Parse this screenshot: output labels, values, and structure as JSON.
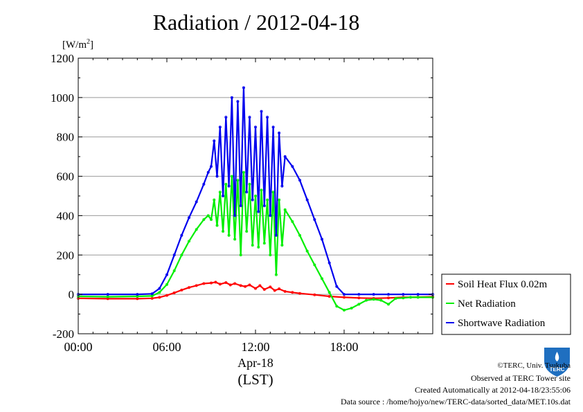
{
  "chart_data": {
    "type": "line",
    "title": "Radiation / 2012-04-18",
    "ylabel": "W/m",
    "ylabel_sup": "2",
    "ylim": [
      -200,
      1200
    ],
    "yticks": [
      -200,
      0,
      200,
      400,
      600,
      800,
      1000,
      1200
    ],
    "ytick_labels": [
      "-200",
      "0",
      "200",
      "400",
      "600",
      "800",
      "1000",
      "1200"
    ],
    "xlim": [
      0,
      24
    ],
    "xticks": [
      0,
      6,
      12,
      18
    ],
    "xtick_labels": [
      "00:00",
      "06:00",
      "12:00",
      "18:00"
    ],
    "xlabel_date": "Apr-18",
    "xlabel": "(LST)",
    "grid": "horizontal",
    "legend_position": "bottom-right",
    "series": [
      {
        "name": "Soil Heat Flux 0.02m",
        "color": "#ff0000",
        "x": [
          0,
          2,
          4,
          5,
          5.5,
          6,
          6.5,
          7,
          7.5,
          8,
          8.5,
          9,
          9.3,
          9.6,
          10,
          10.3,
          10.6,
          11,
          11.3,
          11.6,
          12,
          12.3,
          12.6,
          13,
          13.3,
          13.6,
          14,
          14.5,
          15,
          16,
          17,
          18,
          19,
          20,
          21,
          22,
          23,
          24
        ],
        "y": [
          -20,
          -22,
          -22,
          -20,
          -15,
          -5,
          8,
          22,
          35,
          45,
          55,
          58,
          62,
          52,
          60,
          48,
          55,
          45,
          40,
          48,
          30,
          45,
          25,
          38,
          20,
          28,
          15,
          10,
          5,
          -2,
          -10,
          -15,
          -18,
          -20,
          -18,
          -15,
          -14,
          -12
        ]
      },
      {
        "name": "Net Radiation",
        "color": "#00ee00",
        "x": [
          0,
          2,
          4,
          5,
          5.5,
          6,
          6.5,
          7,
          7.5,
          8,
          8.5,
          8.8,
          9,
          9.2,
          9.4,
          9.6,
          9.8,
          10,
          10.2,
          10.4,
          10.6,
          10.8,
          11,
          11.2,
          11.4,
          11.6,
          11.8,
          12,
          12.2,
          12.4,
          12.6,
          12.8,
          13,
          13.2,
          13.4,
          13.6,
          13.8,
          14,
          14.5,
          15,
          15.5,
          16,
          16.5,
          17,
          17.5,
          18,
          18.5,
          19,
          19.5,
          20,
          20.5,
          21,
          21.5,
          22,
          22.5,
          23,
          24
        ],
        "y": [
          -10,
          -12,
          -10,
          -8,
          10,
          50,
          120,
          200,
          270,
          330,
          380,
          400,
          380,
          480,
          350,
          520,
          320,
          560,
          300,
          600,
          280,
          580,
          200,
          620,
          320,
          560,
          250,
          500,
          240,
          530,
          260,
          480,
          200,
          520,
          100,
          480,
          250,
          430,
          370,
          300,
          220,
          150,
          80,
          10,
          -60,
          -80,
          -70,
          -50,
          -30,
          -25,
          -30,
          -50,
          -20,
          -18,
          -15,
          -15,
          -15
        ]
      },
      {
        "name": "Shortwave Radiation",
        "color": "#0000ee",
        "x": [
          0,
          2,
          4,
          5,
          5.5,
          6,
          6.5,
          7,
          7.5,
          8,
          8.5,
          8.8,
          9,
          9.2,
          9.4,
          9.6,
          9.8,
          10,
          10.2,
          10.4,
          10.6,
          10.8,
          11,
          11.2,
          11.4,
          11.6,
          11.8,
          12,
          12.2,
          12.4,
          12.6,
          12.8,
          13,
          13.2,
          13.4,
          13.6,
          13.8,
          14,
          14.5,
          15,
          15.5,
          16,
          16.5,
          17,
          17.5,
          18,
          19,
          20,
          21,
          22,
          23,
          24
        ],
        "y": [
          0,
          0,
          0,
          3,
          30,
          100,
          200,
          300,
          390,
          470,
          560,
          620,
          650,
          780,
          600,
          850,
          500,
          900,
          550,
          1000,
          400,
          980,
          450,
          1050,
          520,
          900,
          480,
          850,
          420,
          930,
          450,
          900,
          400,
          850,
          300,
          820,
          550,
          700,
          650,
          580,
          480,
          380,
          280,
          160,
          40,
          0,
          0,
          0,
          0,
          0,
          0,
          0
        ]
      }
    ]
  },
  "footer": {
    "credit": "©TERC, Univ. Tsukuba",
    "site": "Observed at TERC Tower site",
    "created": "Created Automatically at 2012-04-18/23:55:06",
    "source": "Data source : /home/hojyo/new/TERC-data/sorted_data/MET.10s.dat"
  },
  "logo": {
    "text": "TERC",
    "color": "#1f6fc0"
  }
}
